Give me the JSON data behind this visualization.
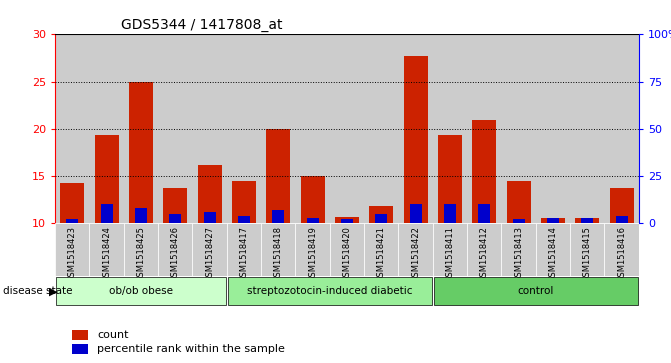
{
  "title": "GDS5344 / 1417808_at",
  "samples": [
    "GSM1518423",
    "GSM1518424",
    "GSM1518425",
    "GSM1518426",
    "GSM1518427",
    "GSM1518417",
    "GSM1518418",
    "GSM1518419",
    "GSM1518420",
    "GSM1518421",
    "GSM1518422",
    "GSM1518411",
    "GSM1518412",
    "GSM1518413",
    "GSM1518414",
    "GSM1518415",
    "GSM1518416"
  ],
  "counts": [
    14.3,
    19.3,
    25.0,
    13.7,
    16.2,
    14.5,
    20.0,
    15.0,
    10.7,
    11.8,
    27.7,
    19.4,
    20.9,
    14.5,
    10.6,
    10.6,
    13.7
  ],
  "percentile_ranks": [
    2,
    10,
    8,
    5,
    6,
    4,
    7,
    3,
    2,
    5,
    10,
    10,
    10,
    2,
    3,
    3,
    4
  ],
  "groups": [
    {
      "label": "ob/ob obese",
      "start": 0,
      "end": 5,
      "color": "#ccffcc"
    },
    {
      "label": "streptozotocin-induced diabetic",
      "start": 5,
      "end": 11,
      "color": "#99ee99"
    },
    {
      "label": "control",
      "start": 11,
      "end": 17,
      "color": "#66cc66"
    }
  ],
  "ylim_left": [
    10,
    30
  ],
  "ylim_right": [
    0,
    100
  ],
  "yticks_left": [
    10,
    15,
    20,
    25,
    30
  ],
  "yticks_right": [
    0,
    25,
    50,
    75,
    100
  ],
  "ytick_labels_right": [
    "0",
    "25",
    "50",
    "75",
    "100%"
  ],
  "bar_color": "#cc2200",
  "percentile_color": "#0000cc",
  "col_bg_color": "#cccccc",
  "disease_state_label": "disease state",
  "legend_count_label": "count",
  "legend_percentile_label": "percentile rank within the sample"
}
